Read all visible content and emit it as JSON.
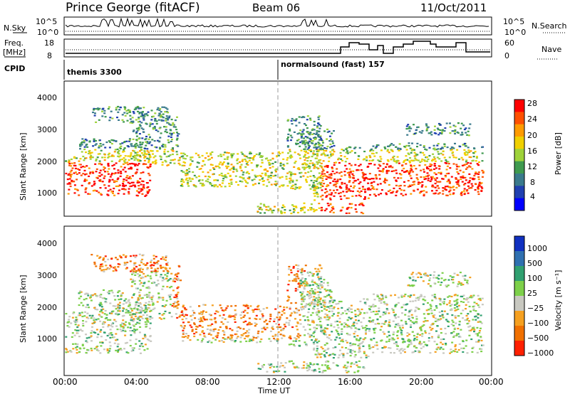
{
  "header": {
    "station": "Prince George (fitACF)",
    "beam": "Beam 06",
    "date": "11/Oct/2011"
  },
  "top_panels": {
    "sky_label": "N.Sky",
    "search_label": "N.Search",
    "sky_ticks": [
      "10^5",
      "10^0"
    ],
    "freq_label_1": "Freq.",
    "freq_label_2": "[MHz]",
    "freq_ticks": [
      "18",
      "8"
    ],
    "nave_label": "Nave",
    "nave_ticks": [
      "60",
      "0"
    ],
    "cpid_label": "CPID",
    "cpid_1": "themis 3300",
    "cpid_2": "normalsound (fast) 157"
  },
  "colors": {
    "power": [
      "#0000ff",
      "#2040b0",
      "#3a7a8c",
      "#3f9a4f",
      "#9ed23a",
      "#f0d000",
      "#ff9b00",
      "#ff5000",
      "#ff0000"
    ],
    "velocity": [
      "#1030c0",
      "#2f70b0",
      "#30a070",
      "#7dd04a",
      "#c8c8c0",
      "#f5a020",
      "#f07000",
      "#ff2000"
    ]
  },
  "chart_data": [
    {
      "type": "heatmap",
      "panel": "power",
      "ylabel": "Slant Range [km]",
      "colorbar_label": "Power [dB]",
      "yticks": [
        "1000",
        "2000",
        "3000",
        "4000"
      ],
      "ylim": [
        200,
        4500
      ],
      "xlim": [
        0,
        24
      ],
      "colorbar_ticks": [
        "4",
        "8",
        "12",
        "16",
        "20",
        "24",
        "28"
      ]
    },
    {
      "type": "heatmap",
      "panel": "velocity",
      "ylabel": "Slant Range [km]",
      "colorbar_label": "Velocity [m s⁻¹]",
      "yticks": [
        "1000",
        "2000",
        "3000",
        "4000"
      ],
      "ylim": [
        200,
        4500
      ],
      "xlim": [
        0,
        24
      ],
      "colorbar_ticks": [
        "1000",
        "500",
        "100",
        "25",
        "−25",
        "−100",
        "−500",
        "−1000"
      ]
    }
  ],
  "x_axis": {
    "ticks": [
      "00:00",
      "04:00",
      "08:00",
      "12:00",
      "16:00",
      "20:00",
      "00:00"
    ],
    "label": "Time UT"
  }
}
